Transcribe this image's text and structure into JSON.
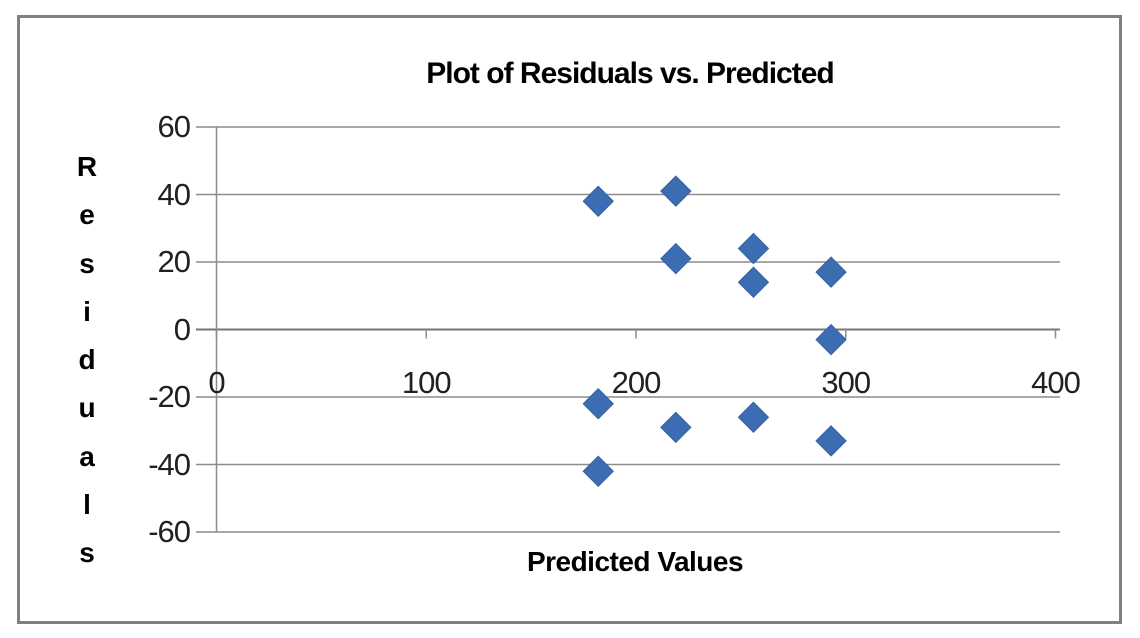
{
  "chart_data": {
    "type": "scatter",
    "title": "Plot of Residuals vs. Predicted",
    "xlabel": "Predicted Values",
    "ylabel": "Residuals",
    "ylabel_orientation": "vertical-stacked-letters",
    "xlim": [
      0,
      400
    ],
    "ylim": [
      -60,
      60
    ],
    "x_ticks": [
      0,
      100,
      200,
      300,
      400
    ],
    "y_ticks": [
      60,
      40,
      20,
      0,
      -20,
      -40,
      -60
    ],
    "grid": true,
    "legend_position": "none",
    "marker": {
      "shape": "diamond",
      "color": "#3c6db3"
    },
    "frame_color": "#7f7f7f",
    "gridline_color": "#8c8c8c",
    "points": [
      {
        "x": 182,
        "y": 38
      },
      {
        "x": 219,
        "y": 41
      },
      {
        "x": 219,
        "y": 21
      },
      {
        "x": 256,
        "y": 24
      },
      {
        "x": 256,
        "y": 14
      },
      {
        "x": 293,
        "y": 17
      },
      {
        "x": 293,
        "y": -3
      },
      {
        "x": 182,
        "y": -22
      },
      {
        "x": 219,
        "y": -29
      },
      {
        "x": 256,
        "y": -26
      },
      {
        "x": 293,
        "y": -33
      },
      {
        "x": 182,
        "y": -42
      }
    ]
  }
}
